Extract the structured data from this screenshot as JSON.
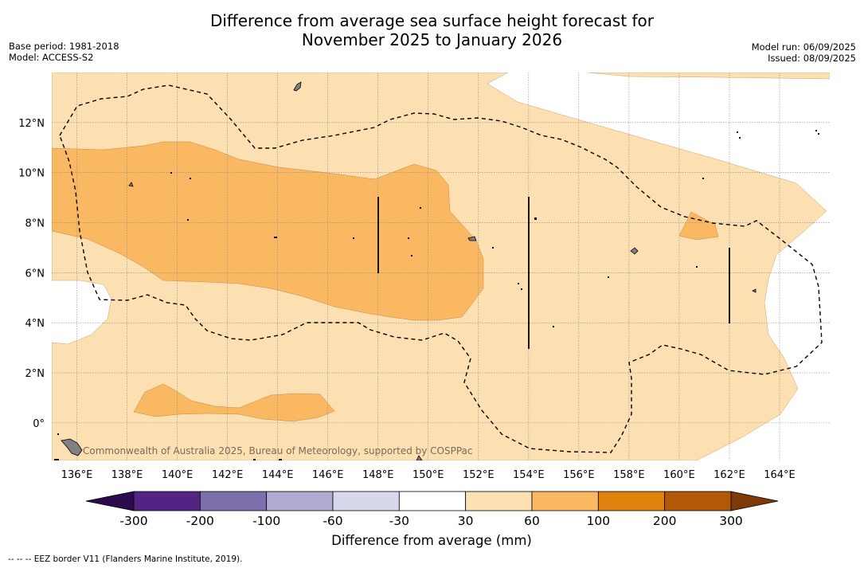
{
  "title": {
    "line1": "Difference from average sea surface height forecast for",
    "line2": "November 2025 to January 2026"
  },
  "meta_left": {
    "base_period": "Base period: 1981-2018",
    "model": "Model: ACCESS-S2"
  },
  "meta_right": {
    "model_run": "Model run: 06/09/2025",
    "issued": "Issued: 08/09/2025"
  },
  "map": {
    "lon_range": [
      135,
      166
    ],
    "lat_range": [
      -1.5,
      14
    ],
    "lon_ticks": [
      136,
      138,
      140,
      142,
      144,
      146,
      148,
      150,
      152,
      154,
      156,
      158,
      160,
      162,
      164
    ],
    "lon_tick_labels": [
      "136°E",
      "138°E",
      "140°E",
      "142°E",
      "144°E",
      "146°E",
      "148°E",
      "150°E",
      "152°E",
      "154°E",
      "156°E",
      "158°E",
      "160°E",
      "162°E",
      "164°E"
    ],
    "lat_ticks": [
      0,
      2,
      4,
      6,
      8,
      10,
      12
    ],
    "lat_tick_labels": [
      "0°",
      "2°N",
      "4°N",
      "6°N",
      "8°N",
      "10°N",
      "12°N"
    ],
    "credit": "Commonwealth of Australia 2025, Bureau of Meteorology, supported by COSPPac",
    "colors": {
      "band_30_60": "#fde0b2",
      "band_60_100": "#fbb862",
      "land": "#808080"
    }
  },
  "colorbar": {
    "title": "Difference from average (mm)",
    "labels": [
      "-300",
      "-200",
      "-100",
      "-60",
      "-30",
      "30",
      "60",
      "100",
      "200",
      "300"
    ],
    "colors": [
      "#522584",
      "#7c6fac",
      "#b0aad2",
      "#d8d8ec",
      "#ffffff",
      "#fde0b2",
      "#fbb862",
      "#e1820f",
      "#b25806"
    ],
    "min_extend_color": "#2d0a4e",
    "max_extend_color": "#7d3a08"
  },
  "footnote": "--  --  -- EEZ border V11 (Flanders Marine Institute, 2019)."
}
